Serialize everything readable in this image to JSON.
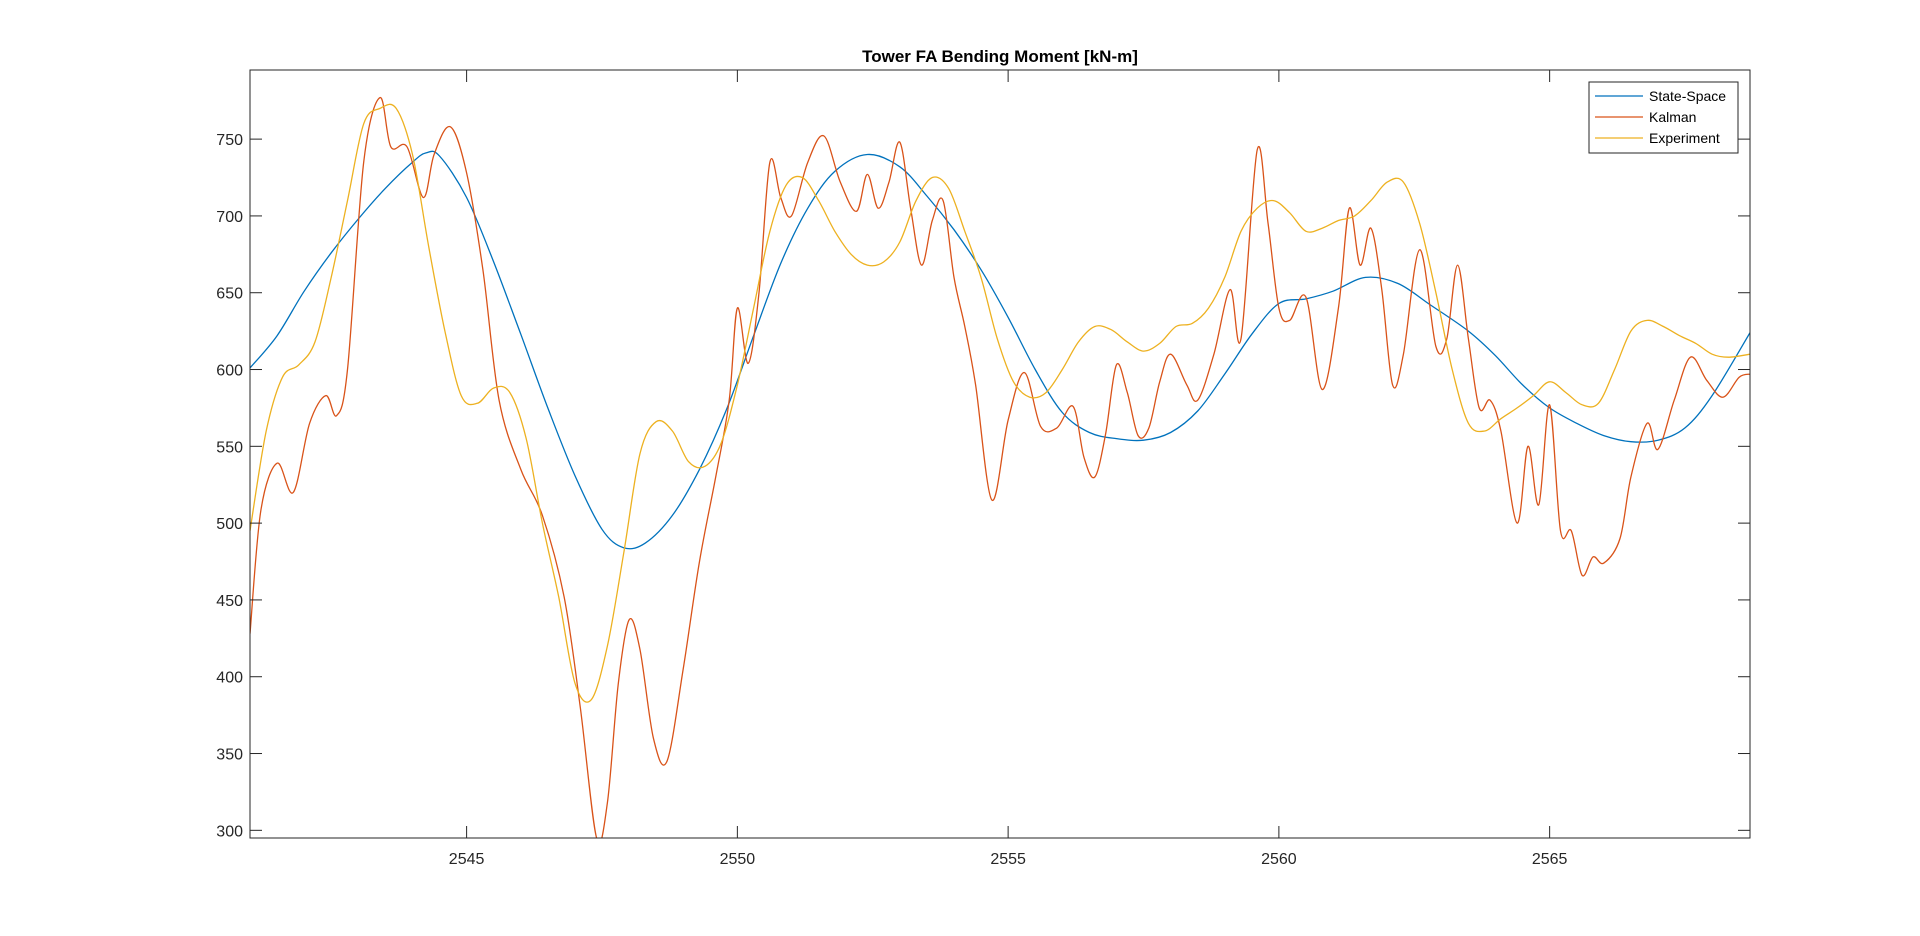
{
  "chart_data": {
    "type": "line",
    "title": "Tower FA Bending Moment [kN-m]",
    "xlabel": "",
    "ylabel": "",
    "xlim": [
      2541,
      2568.7
    ],
    "ylim": [
      295,
      795
    ],
    "xticks": [
      2545,
      2550,
      2555,
      2560,
      2565
    ],
    "yticks": [
      300,
      350,
      400,
      450,
      500,
      550,
      600,
      650,
      700,
      750
    ],
    "grid": false,
    "legend_position": "top-right",
    "series": [
      {
        "name": "State-Space",
        "color": "#0072BD",
        "x": [
          2541,
          2541.5,
          2542,
          2542.5,
          2543,
          2543.5,
          2544,
          2544.25,
          2544.5,
          2545,
          2545.5,
          2546,
          2546.5,
          2547,
          2547.5,
          2547.9,
          2548.3,
          2548.8,
          2549.3,
          2549.8,
          2550.3,
          2550.8,
          2551.3,
          2551.8,
          2552.4,
          2553,
          2553.5,
          2554,
          2554.5,
          2555,
          2555.5,
          2556,
          2556.5,
          2557,
          2557.5,
          2558,
          2558.5,
          2559,
          2559.5,
          2560,
          2560.5,
          2561,
          2561.6,
          2562.2,
          2562.8,
          2563.5,
          2564,
          2564.5,
          2565,
          2565.5,
          2566,
          2566.5,
          2567,
          2567.5,
          2568,
          2568.7
        ],
        "y": [
          601,
          622,
          651,
          676,
          698,
          718,
          735,
          741,
          739,
          712,
          670,
          623,
          575,
          531,
          496,
          484,
          487,
          505,
          535,
          574,
          622,
          669,
          705,
          729,
          740,
          732,
          713,
          691,
          665,
          634,
          600,
          572,
          559,
          555,
          554,
          559,
          573,
          597,
          623,
          643,
          646,
          651,
          660,
          656,
          642,
          625,
          609,
          590,
          575,
          565,
          557,
          553,
          554,
          562,
          583,
          624
        ]
      },
      {
        "name": "Kalman",
        "color": "#D95319",
        "x": [
          2541,
          2541.2,
          2541.5,
          2541.8,
          2542.1,
          2542.4,
          2542.6,
          2542.8,
          2543.1,
          2543.4,
          2543.6,
          2543.9,
          2544.2,
          2544.4,
          2544.7,
          2545,
          2545.3,
          2545.6,
          2546,
          2546.4,
          2546.8,
          2547.1,
          2547.4,
          2547.6,
          2547.8,
          2548,
          2548.2,
          2548.45,
          2548.7,
          2549,
          2549.3,
          2549.6,
          2549.85,
          2550,
          2550.2,
          2550.4,
          2550.6,
          2550.8,
          2551,
          2551.3,
          2551.6,
          2551.9,
          2552.2,
          2552.4,
          2552.6,
          2552.8,
          2553,
          2553.2,
          2553.4,
          2553.6,
          2553.8,
          2554,
          2554.2,
          2554.4,
          2554.7,
          2555,
          2555.3,
          2555.6,
          2555.9,
          2556.2,
          2556.4,
          2556.6,
          2556.8,
          2557,
          2557.2,
          2557.4,
          2557.6,
          2557.8,
          2558,
          2558.3,
          2558.5,
          2558.8,
          2559.1,
          2559.3,
          2559.6,
          2559.8,
          2560,
          2560.2,
          2560.5,
          2560.8,
          2561.1,
          2561.3,
          2561.5,
          2561.7,
          2561.9,
          2562.1,
          2562.3,
          2562.6,
          2562.9,
          2563.1,
          2563.3,
          2563.5,
          2563.7,
          2563.9,
          2564.1,
          2564.4,
          2564.6,
          2564.8,
          2565,
          2565.2,
          2565.4,
          2565.6,
          2565.8,
          2566,
          2566.3,
          2566.5,
          2566.8,
          2567,
          2567.3,
          2567.6,
          2567.9,
          2568.2,
          2568.5,
          2568.7
        ],
        "y": [
          428,
          508,
          539,
          520,
          565,
          583,
          570,
          600,
          735,
          777,
          745,
          745,
          712,
          740,
          758,
          728,
          665,
          580,
          535,
          505,
          452,
          380,
          295,
          318,
          395,
          437,
          418,
          360,
          345,
          405,
          475,
          530,
          580,
          640,
          604,
          650,
          735,
          712,
          700,
          735,
          752,
          722,
          703,
          727,
          705,
          722,
          748,
          705,
          668,
          697,
          710,
          660,
          628,
          590,
          515,
          567,
          598,
          563,
          562,
          576,
          543,
          530,
          558,
          603,
          585,
          557,
          562,
          592,
          610,
          590,
          580,
          610,
          652,
          620,
          743,
          695,
          640,
          632,
          647,
          587,
          640,
          705,
          668,
          692,
          652,
          590,
          610,
          678,
          615,
          620,
          668,
          620,
          575,
          580,
          560,
          500,
          550,
          512,
          577,
          495,
          495,
          466,
          478,
          474,
          490,
          530,
          565,
          548,
          580,
          608,
          593,
          582,
          595,
          597
        ],
        "ylim_note": ""
      },
      {
        "name": "Experiment",
        "color": "#EDB120",
        "x": [
          2541,
          2541.3,
          2541.6,
          2541.9,
          2542.2,
          2542.5,
          2542.8,
          2543.1,
          2543.4,
          2543.7,
          2544,
          2544.3,
          2544.6,
          2544.9,
          2545.2,
          2545.5,
          2545.8,
          2546.1,
          2546.4,
          2546.7,
          2547,
          2547.3,
          2547.6,
          2547.9,
          2548.2,
          2548.5,
          2548.8,
          2549.1,
          2549.4,
          2549.7,
          2550,
          2550.3,
          2550.6,
          2550.9,
          2551.2,
          2551.5,
          2551.8,
          2552.1,
          2552.4,
          2552.7,
          2553,
          2553.3,
          2553.6,
          2553.9,
          2554.2,
          2554.5,
          2554.8,
          2555.1,
          2555.4,
          2555.7,
          2556,
          2556.3,
          2556.6,
          2556.9,
          2557.2,
          2557.5,
          2557.8,
          2558.1,
          2558.4,
          2558.7,
          2559,
          2559.3,
          2559.6,
          2559.9,
          2560.2,
          2560.5,
          2560.8,
          2561.1,
          2561.4,
          2561.7,
          2562,
          2562.3,
          2562.6,
          2562.9,
          2563.2,
          2563.5,
          2563.8,
          2564.1,
          2564.4,
          2564.7,
          2565,
          2565.3,
          2565.6,
          2565.9,
          2566.2,
          2566.5,
          2566.8,
          2567.1,
          2567.4,
          2567.7,
          2568,
          2568.3,
          2568.7
        ],
        "y": [
          495,
          560,
          595,
          603,
          618,
          660,
          710,
          760,
          770,
          770,
          740,
          680,
          625,
          583,
          578,
          588,
          585,
          555,
          500,
          452,
          396,
          385,
          420,
          480,
          545,
          566,
          560,
          540,
          537,
          552,
          590,
          640,
          690,
          720,
          725,
          710,
          690,
          675,
          668,
          670,
          683,
          710,
          725,
          718,
          690,
          660,
          620,
          592,
          582,
          585,
          600,
          618,
          628,
          626,
          618,
          612,
          617,
          628,
          630,
          640,
          660,
          690,
          705,
          710,
          702,
          690,
          692,
          697,
          700,
          710,
          722,
          722,
          695,
          650,
          600,
          565,
          560,
          568,
          575,
          583,
          592,
          585,
          577,
          578,
          600,
          625,
          632,
          628,
          622,
          617,
          610,
          608,
          610
        ]
      }
    ]
  }
}
